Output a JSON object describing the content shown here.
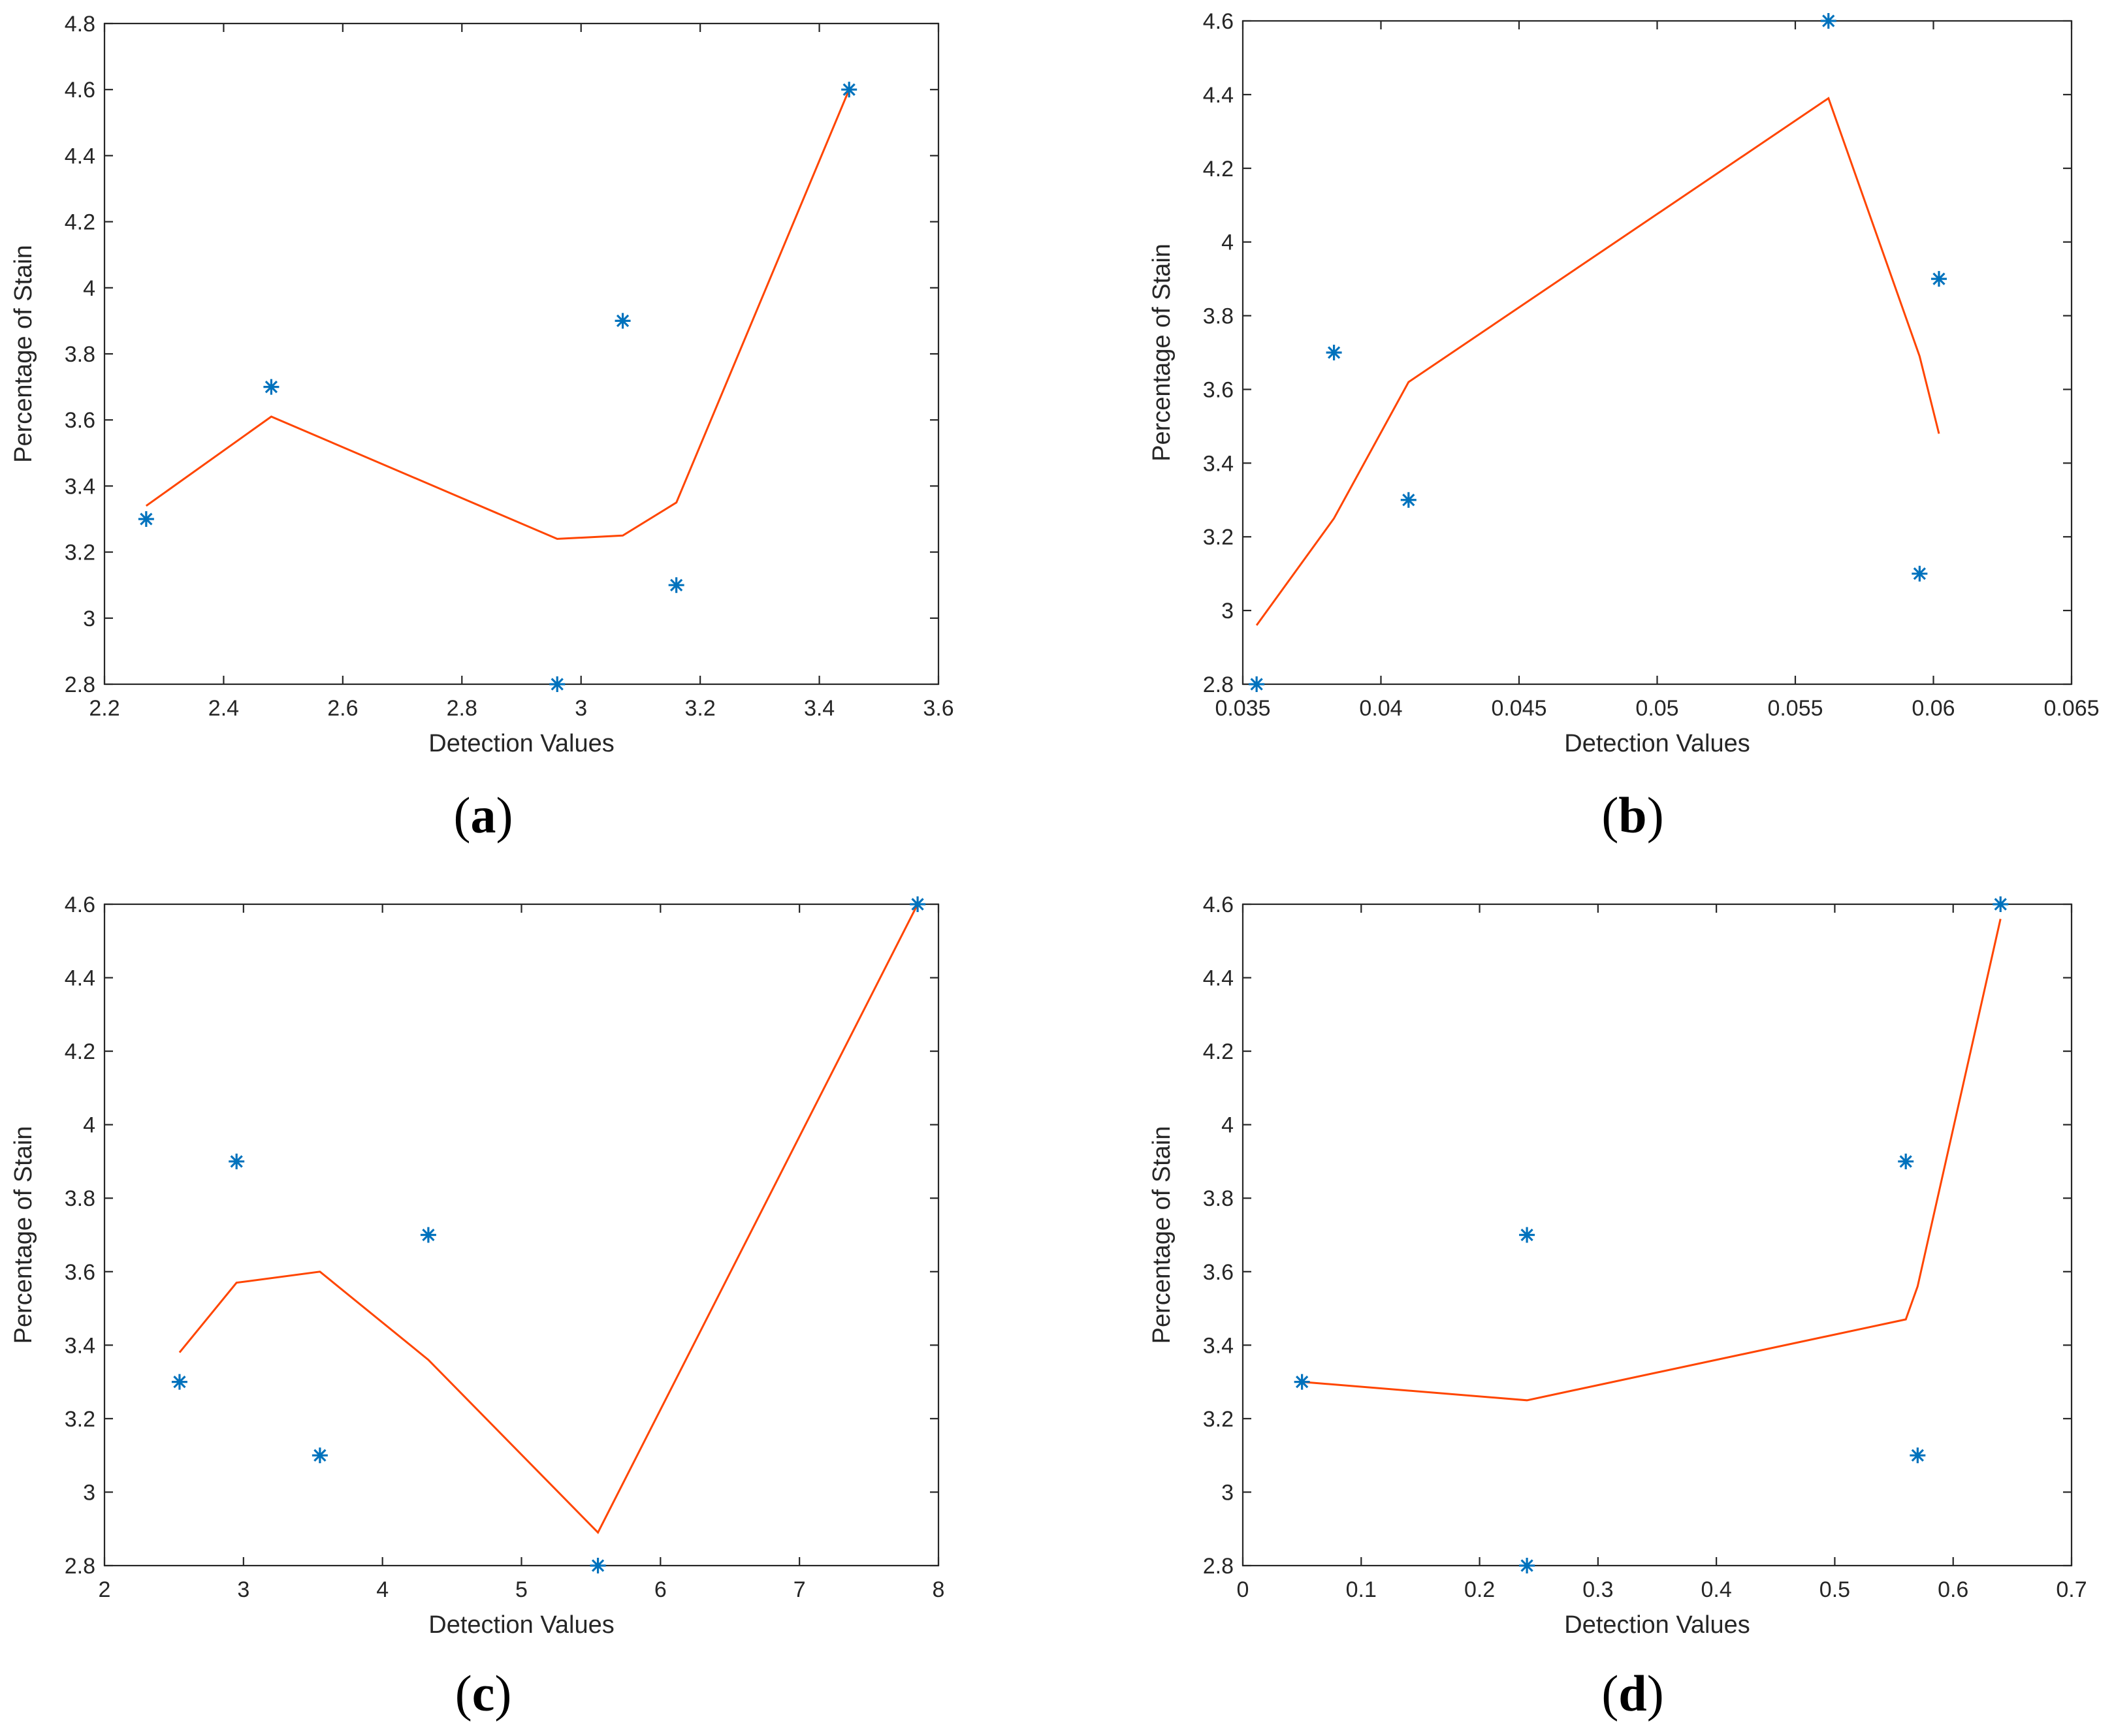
{
  "colors": {
    "points": "#0072BD",
    "fit_line": "#FF4500",
    "axes": "#262626"
  },
  "chart_data": [
    {
      "id": "a",
      "type": "scatter",
      "caption": "a",
      "xlabel": "Detection Values",
      "ylabel": "Percentage of Stain",
      "xlim": [
        2.2,
        3.6
      ],
      "ylim": [
        2.8,
        4.8
      ],
      "xticks": [
        "2.2",
        "2.4",
        "2.6",
        "2.8",
        "3",
        "3.2",
        "3.4",
        "3.6"
      ],
      "yticks": [
        "2.8",
        "3",
        "3.2",
        "3.4",
        "3.6",
        "3.8",
        "4",
        "4.2",
        "4.4",
        "4.6",
        "4.8"
      ],
      "series": [
        {
          "name": "points",
          "type": "scatter",
          "marker": "asterisk",
          "x": [
            2.27,
            2.48,
            2.96,
            3.07,
            3.16,
            3.45
          ],
          "y": [
            3.3,
            3.7,
            2.8,
            3.9,
            3.1,
            4.6
          ]
        },
        {
          "name": "fit",
          "type": "line",
          "x": [
            2.27,
            2.48,
            2.96,
            3.07,
            3.16,
            3.45
          ],
          "y": [
            3.34,
            3.61,
            3.24,
            3.25,
            3.35,
            4.6
          ]
        }
      ]
    },
    {
      "id": "b",
      "type": "scatter",
      "caption": "b",
      "xlabel": "Detection Values",
      "ylabel": "Percentage of Stain",
      "xlim": [
        0.035,
        0.065
      ],
      "ylim": [
        2.8,
        4.6
      ],
      "xticks": [
        "0.035",
        "0.04",
        "0.045",
        "0.05",
        "0.055",
        "0.06",
        "0.065"
      ],
      "yticks": [
        "2.8",
        "3",
        "3.2",
        "3.4",
        "3.6",
        "3.8",
        "4",
        "4.2",
        "4.4",
        "4.6"
      ],
      "series": [
        {
          "name": "points",
          "type": "scatter",
          "marker": "asterisk",
          "x": [
            0.0355,
            0.0383,
            0.041,
            0.0562,
            0.0595,
            0.0602
          ],
          "y": [
            2.8,
            3.7,
            3.3,
            4.6,
            3.1,
            3.9
          ]
        },
        {
          "name": "fit",
          "type": "line",
          "x": [
            0.0355,
            0.0383,
            0.041,
            0.0562,
            0.0595,
            0.0602
          ],
          "y": [
            2.96,
            3.25,
            3.62,
            4.39,
            3.69,
            3.48
          ]
        }
      ]
    },
    {
      "id": "c",
      "type": "scatter",
      "caption": "c",
      "xlabel": "Detection Values",
      "ylabel": "Percentage of Stain",
      "xlim": [
        2,
        8
      ],
      "ylim": [
        2.8,
        4.6
      ],
      "xticks": [
        "2",
        "3",
        "4",
        "5",
        "6",
        "7",
        "8"
      ],
      "yticks": [
        "2.8",
        "3",
        "3.2",
        "3.4",
        "3.6",
        "3.8",
        "4",
        "4.2",
        "4.4",
        "4.6"
      ],
      "series": [
        {
          "name": "points",
          "type": "scatter",
          "marker": "asterisk",
          "x": [
            2.54,
            2.95,
            3.55,
            4.33,
            5.55,
            7.85
          ],
          "y": [
            3.3,
            3.9,
            3.1,
            3.7,
            2.8,
            4.6
          ]
        },
        {
          "name": "fit",
          "type": "line",
          "x": [
            2.54,
            2.95,
            3.55,
            4.33,
            5.55,
            7.85
          ],
          "y": [
            3.38,
            3.57,
            3.6,
            3.36,
            2.89,
            4.6
          ]
        }
      ]
    },
    {
      "id": "d",
      "type": "scatter",
      "caption": "d",
      "xlabel": "Detection Values",
      "ylabel": "Percentage of Stain",
      "xlim": [
        0,
        0.7
      ],
      "ylim": [
        2.8,
        4.6
      ],
      "xticks": [
        "0",
        "0.1",
        "0.2",
        "0.3",
        "0.4",
        "0.5",
        "0.6",
        "0.7"
      ],
      "yticks": [
        "2.8",
        "3",
        "3.2",
        "3.4",
        "3.6",
        "3.8",
        "4",
        "4.2",
        "4.4",
        "4.6"
      ],
      "series": [
        {
          "name": "points",
          "type": "scatter",
          "marker": "asterisk",
          "x": [
            0.05,
            0.24,
            0.24,
            0.56,
            0.57,
            0.64
          ],
          "y": [
            3.3,
            3.7,
            2.8,
            3.9,
            3.1,
            4.6
          ]
        },
        {
          "name": "fit",
          "type": "line",
          "x": [
            0.05,
            0.24,
            0.56,
            0.57,
            0.64
          ],
          "y": [
            3.3,
            3.25,
            3.47,
            3.56,
            4.56
          ]
        }
      ]
    }
  ]
}
